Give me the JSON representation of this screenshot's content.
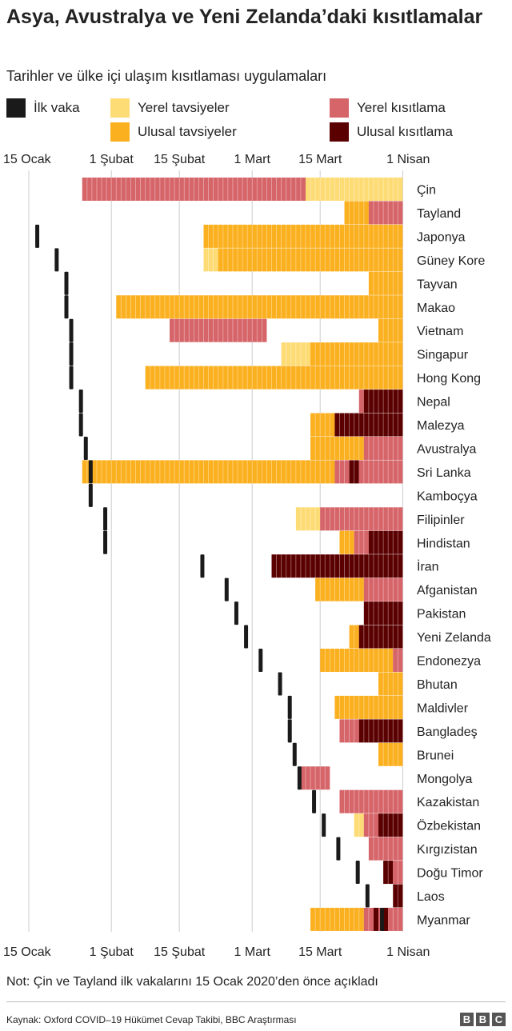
{
  "title": "Asya, Avustralya ve Yeni Zelanda’daki kısıtlamalar",
  "subtitle": "Tarihler ve ülke içi ulaşım kısıtlaması uygulamaları",
  "legend": {
    "first_case": {
      "label": "İlk vaka",
      "color": "#1a1a1a"
    },
    "local_advice": {
      "label": "Yerel tavsiyeler",
      "color": "#fddb75"
    },
    "national_advice": {
      "label": "Ulusal tavsiyeler",
      "color": "#fbb020"
    },
    "local_restriction": {
      "label": "Yerel kısıtlama",
      "color": "#d6656a"
    },
    "national_restriction": {
      "label": "Ulusal kısıtlama",
      "color": "#5b0000"
    }
  },
  "chart_data": {
    "type": "timeline",
    "x_unit": "day index (0 = 15 Ocak 2020)",
    "x_range": [
      -1,
      78
    ],
    "ticks": [
      {
        "day": 0,
        "label": "15 Ocak"
      },
      {
        "day": 17,
        "label": "1 Şubat"
      },
      {
        "day": 31,
        "label": "15 Şubat"
      },
      {
        "day": 46,
        "label": "1 Mart"
      },
      {
        "day": 60,
        "label": "15 Mart"
      },
      {
        "day": 77,
        "label": "1 Nisan"
      }
    ],
    "countries": [
      {
        "name": "Çin",
        "first_case": null,
        "segments": [
          [
            11,
            57,
            "local_restriction"
          ],
          [
            57,
            77,
            "local_advice"
          ]
        ]
      },
      {
        "name": "Tayland",
        "first_case": null,
        "segments": [
          [
            65,
            70,
            "national_advice"
          ],
          [
            70,
            77,
            "local_restriction"
          ]
        ]
      },
      {
        "name": "Japonya",
        "first_case": 1,
        "segments": [
          [
            36,
            77,
            "national_advice"
          ]
        ]
      },
      {
        "name": "Güney Kore",
        "first_case": 5,
        "segments": [
          [
            36,
            39,
            "local_advice"
          ],
          [
            39,
            77,
            "national_advice"
          ]
        ]
      },
      {
        "name": "Tayvan",
        "first_case": 7,
        "segments": [
          [
            70,
            77,
            "national_advice"
          ]
        ]
      },
      {
        "name": "Makao",
        "first_case": 7,
        "segments": [
          [
            18,
            77,
            "national_advice"
          ]
        ]
      },
      {
        "name": "Vietnam",
        "first_case": 8,
        "segments": [
          [
            29,
            49,
            "local_restriction"
          ],
          [
            72,
            77,
            "national_advice"
          ]
        ]
      },
      {
        "name": "Singapur",
        "first_case": 8,
        "segments": [
          [
            52,
            58,
            "local_advice"
          ],
          [
            58,
            77,
            "national_advice"
          ]
        ]
      },
      {
        "name": "Hong Kong",
        "first_case": 8,
        "segments": [
          [
            24,
            77,
            "national_advice"
          ]
        ]
      },
      {
        "name": "Nepal",
        "first_case": 10,
        "segments": [
          [
            68,
            69,
            "local_restriction"
          ],
          [
            69,
            77,
            "national_restriction"
          ]
        ]
      },
      {
        "name": "Malezya",
        "first_case": 10,
        "segments": [
          [
            58,
            63,
            "national_advice"
          ],
          [
            63,
            77,
            "national_restriction"
          ]
        ]
      },
      {
        "name": "Avustralya",
        "first_case": 11,
        "segments": [
          [
            58,
            69,
            "national_advice"
          ],
          [
            69,
            77,
            "local_restriction"
          ]
        ]
      },
      {
        "name": "Sri Lanka",
        "first_case": 12,
        "segments": [
          [
            11,
            63,
            "national_advice"
          ],
          [
            63,
            66,
            "local_restriction"
          ],
          [
            66,
            68,
            "national_restriction"
          ],
          [
            68,
            77,
            "local_restriction"
          ]
        ]
      },
      {
        "name": "Kamboçya",
        "first_case": 12,
        "segments": []
      },
      {
        "name": "Filipinler",
        "first_case": 15,
        "segments": [
          [
            55,
            60,
            "local_advice"
          ],
          [
            60,
            77,
            "local_restriction"
          ]
        ]
      },
      {
        "name": "Hindistan",
        "first_case": 15,
        "segments": [
          [
            64,
            67,
            "national_advice"
          ],
          [
            67,
            70,
            "local_restriction"
          ],
          [
            70,
            77,
            "national_restriction"
          ]
        ]
      },
      {
        "name": "İran",
        "first_case": 35,
        "segments": [
          [
            50,
            77,
            "national_restriction"
          ]
        ]
      },
      {
        "name": "Afganistan",
        "first_case": 40,
        "segments": [
          [
            59,
            69,
            "national_advice"
          ],
          [
            69,
            77,
            "local_restriction"
          ]
        ]
      },
      {
        "name": "Pakistan",
        "first_case": 42,
        "segments": [
          [
            69,
            77,
            "national_restriction"
          ]
        ]
      },
      {
        "name": "Yeni Zelanda",
        "first_case": 44,
        "segments": [
          [
            66,
            68,
            "national_advice"
          ],
          [
            68,
            77,
            "national_restriction"
          ]
        ]
      },
      {
        "name": "Endonezya",
        "first_case": 47,
        "segments": [
          [
            60,
            75,
            "national_advice"
          ],
          [
            75,
            77,
            "local_restriction"
          ]
        ]
      },
      {
        "name": "Bhutan",
        "first_case": 51,
        "segments": [
          [
            72,
            77,
            "national_advice"
          ]
        ]
      },
      {
        "name": "Maldivler",
        "first_case": 53,
        "segments": [
          [
            63,
            77,
            "national_advice"
          ]
        ]
      },
      {
        "name": "Bangladeş",
        "first_case": 53,
        "segments": [
          [
            64,
            68,
            "local_restriction"
          ],
          [
            68,
            77,
            "national_restriction"
          ]
        ]
      },
      {
        "name": "Brunei",
        "first_case": 54,
        "segments": [
          [
            72,
            77,
            "national_advice"
          ]
        ]
      },
      {
        "name": "Mongolya",
        "first_case": 55,
        "segments": [
          [
            56,
            62,
            "local_restriction"
          ]
        ]
      },
      {
        "name": "Kazakistan",
        "first_case": 58,
        "segments": [
          [
            64,
            77,
            "local_restriction"
          ]
        ]
      },
      {
        "name": "Özbekistan",
        "first_case": 60,
        "segments": [
          [
            67,
            69,
            "local_advice"
          ],
          [
            69,
            72,
            "local_restriction"
          ],
          [
            72,
            77,
            "national_restriction"
          ]
        ]
      },
      {
        "name": "Kırgızistan",
        "first_case": 63,
        "segments": [
          [
            70,
            77,
            "local_restriction"
          ]
        ]
      },
      {
        "name": "Doğu Timor",
        "first_case": 67,
        "segments": [
          [
            73,
            75,
            "national_restriction"
          ],
          [
            75,
            77,
            "local_restriction"
          ]
        ]
      },
      {
        "name": "Laos",
        "first_case": 69,
        "segments": [
          [
            75,
            77,
            "national_restriction"
          ]
        ]
      },
      {
        "name": "Myanmar",
        "first_case": 72,
        "segments": [
          [
            58,
            69,
            "national_advice"
          ],
          [
            69,
            71,
            "local_restriction"
          ],
          [
            71,
            72,
            "national_restriction"
          ],
          [
            72,
            73,
            "local_restriction"
          ],
          [
            73,
            74,
            "national_restriction"
          ],
          [
            74,
            77,
            "local_restriction"
          ]
        ]
      }
    ]
  },
  "note": "Not: Çin ve Tayland ilk vakalarını 15 Ocak 2020’den önce açıkladı",
  "source": "Kaynak: Oxford COVID–19 Hükümet Cevap Takibi, BBC Araştırması",
  "logo_text": "BBC"
}
